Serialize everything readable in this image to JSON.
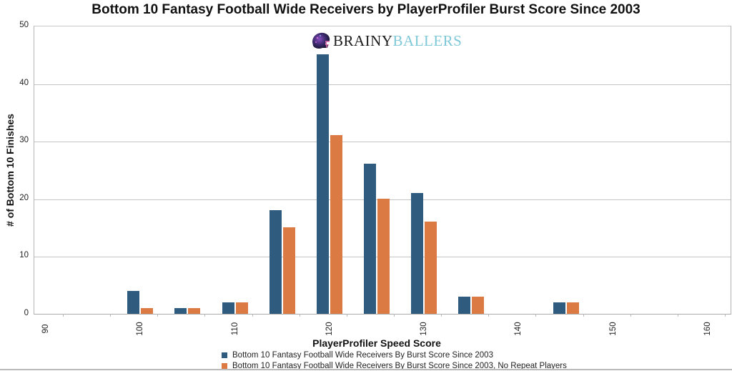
{
  "chart_data": {
    "type": "bar",
    "title": "Bottom 10 Fantasy Football Wide Receivers by PlayerProfiler Burst Score Since 2003",
    "xlabel": "PlayerProfiler Speed Score",
    "ylabel": "# of Bottom 10 Finishes",
    "ylim": [
      0,
      50
    ],
    "yticks": [
      0,
      10,
      20,
      30,
      40,
      50
    ],
    "xlim": [
      90,
      160
    ],
    "xticks": [
      90,
      100,
      110,
      120,
      130,
      140,
      150,
      160
    ],
    "grid": true,
    "legend_position": "bottom",
    "categories": [
      100,
      105,
      110,
      115,
      120,
      125,
      130,
      135,
      145
    ],
    "series": [
      {
        "name": "Bottom 10 Fantasy Football Wide Receivers By Burst Score Since 2003",
        "color": "#2e5b7e",
        "values": [
          4,
          1,
          2,
          18,
          45,
          26,
          21,
          3,
          2
        ]
      },
      {
        "name": "Bottom 10 Fantasy Football Wide Receivers By Burst Score Since 2003, No Repeat Players",
        "color": "#dc7a43",
        "values": [
          1,
          1,
          2,
          15,
          31,
          20,
          16,
          3,
          2
        ]
      }
    ]
  },
  "branding": {
    "logo_part1": "BRAINY",
    "logo_part2": "BALLERS",
    "logo_icon": "football-helmet-icon"
  }
}
